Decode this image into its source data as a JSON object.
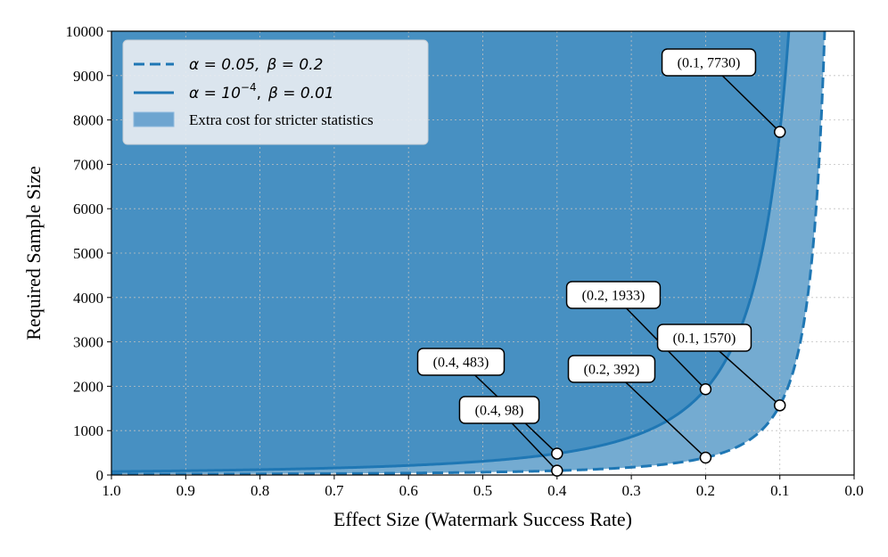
{
  "chart_data": {
    "type": "line",
    "xlabel": "Effect Size (Watermark Success Rate)",
    "ylabel": "Required Sample Size",
    "xlim": [
      1.0,
      0.0
    ],
    "ylim": [
      0,
      10000
    ],
    "x_ticks": [
      1.0,
      0.9,
      0.8,
      0.7,
      0.6,
      0.5,
      0.4,
      0.3,
      0.2,
      0.1,
      0.0
    ],
    "x_tick_labels": [
      "1.0",
      "0.9",
      "0.8",
      "0.7",
      "0.6",
      "0.5",
      "0.4",
      "0.3",
      "0.2",
      "0.1",
      "0.0"
    ],
    "y_ticks": [
      0,
      1000,
      2000,
      3000,
      4000,
      5000,
      6000,
      7000,
      8000,
      9000,
      10000
    ],
    "y_tick_labels": [
      "0",
      "1000",
      "2000",
      "3000",
      "4000",
      "5000",
      "6000",
      "7000",
      "8000",
      "9000",
      "10000"
    ],
    "grid": true,
    "series": [
      {
        "name": "α = 0.05, β = 0.2",
        "style": "dashed",
        "coefficient": 15.7,
        "color": "#1f77b4"
      },
      {
        "name": "α = 10^-4, β = 0.01",
        "style": "solid",
        "coefficient": 77.3,
        "color": "#1f77b4"
      }
    ],
    "fill": {
      "label": "Extra cost for stricter statistics",
      "color": "#1f77b4"
    },
    "annotations": [
      {
        "x": 0.1,
        "y": 7730,
        "label": "(0.1, 7730)"
      },
      {
        "x": 0.2,
        "y": 1933,
        "label": "(0.2, 1933)"
      },
      {
        "x": 0.1,
        "y": 1570,
        "label": "(0.1, 1570)"
      },
      {
        "x": 0.4,
        "y": 483,
        "label": "(0.4, 483)"
      },
      {
        "x": 0.2,
        "y": 392,
        "label": "(0.2, 392)"
      },
      {
        "x": 0.4,
        "y": 98,
        "label": "(0.4, 98)"
      }
    ],
    "legend": {
      "position": "top-left",
      "entries": [
        {
          "prefix": "α = 0.05,",
          "suffix": "β = 0.2"
        },
        {
          "prefix": "α = 10",
          "superscript": "−4",
          "mid": ",",
          "suffix": "β = 0.01"
        },
        {
          "text": "Extra cost for stricter statistics"
        }
      ]
    }
  }
}
